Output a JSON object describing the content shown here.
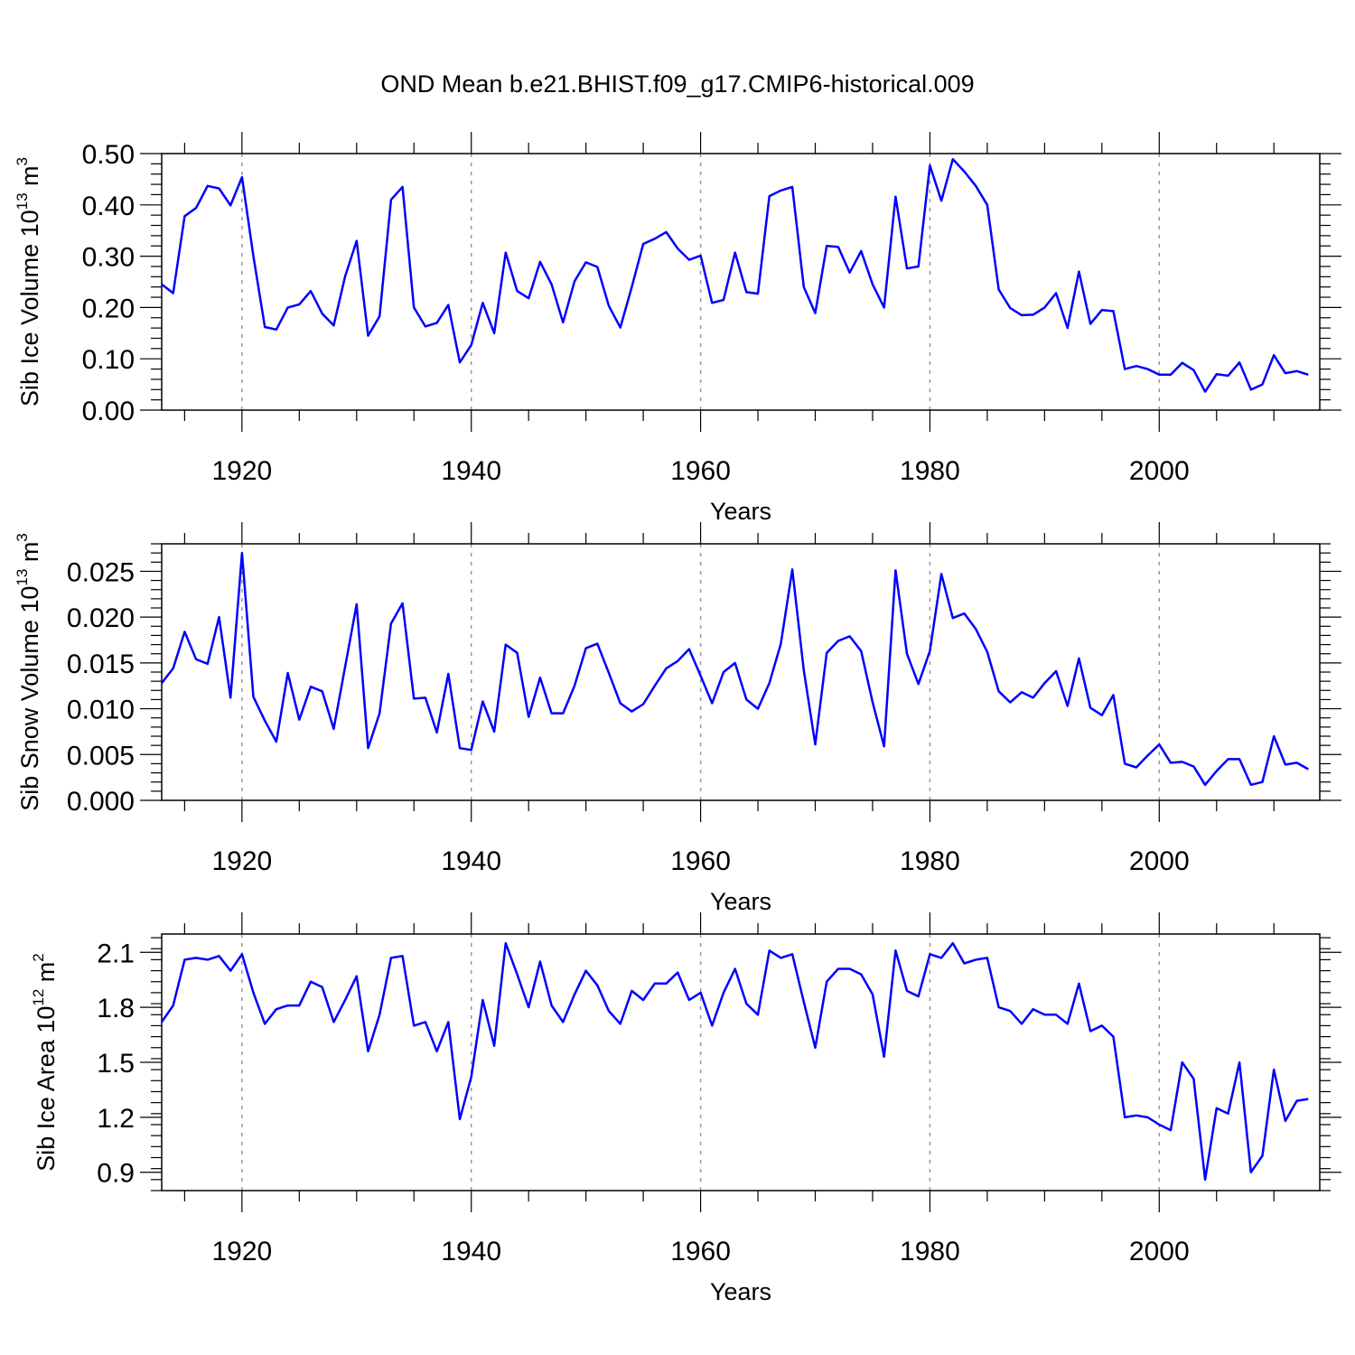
{
  "title": "OND Mean b.e21.BHIST.f09_g17.CMIP6-historical.009",
  "line_color": "#0000ff",
  "chart_data": [
    {
      "type": "line",
      "name": "sib-ice-volume",
      "ylabel": {
        "main": "Sib Ice Volume 10",
        "sup": "13",
        "mid": " m",
        "sup2": "3"
      },
      "xlabel": "Years",
      "xlim": [
        1913,
        2014
      ],
      "ylim": [
        0,
        0.5
      ],
      "yticks": [
        0,
        0.1,
        0.2,
        0.3,
        0.4,
        0.5
      ],
      "ytick_labels": [
        "0.00",
        "0.10",
        "0.20",
        "0.30",
        "0.40",
        "0.50"
      ],
      "xticks": [
        1920,
        1940,
        1960,
        1980,
        2000
      ],
      "xtick_labels": [
        "1920",
        "1940",
        "1960",
        "1980",
        "2000"
      ],
      "x_start": 1913,
      "values": [
        0.245,
        0.228,
        0.378,
        0.394,
        0.437,
        0.432,
        0.399,
        0.454,
        0.3,
        0.162,
        0.157,
        0.2,
        0.206,
        0.232,
        0.188,
        0.165,
        0.261,
        0.33,
        0.145,
        0.183,
        0.41,
        0.435,
        0.2,
        0.163,
        0.17,
        0.205,
        0.093,
        0.127,
        0.209,
        0.15,
        0.307,
        0.232,
        0.218,
        0.289,
        0.245,
        0.171,
        0.251,
        0.288,
        0.279,
        0.203,
        0.161,
        0.24,
        0.324,
        0.334,
        0.347,
        0.315,
        0.293,
        0.301,
        0.209,
        0.215,
        0.307,
        0.23,
        0.227,
        0.417,
        0.428,
        0.435,
        0.24,
        0.189,
        0.32,
        0.318,
        0.268,
        0.31,
        0.245,
        0.2,
        0.416,
        0.276,
        0.28,
        0.477,
        0.408,
        0.489,
        0.465,
        0.437,
        0.4,
        0.235,
        0.199,
        0.185,
        0.186,
        0.2,
        0.228,
        0.16,
        0.27,
        0.168,
        0.195,
        0.193,
        0.08,
        0.086,
        0.08,
        0.069,
        0.069,
        0.092,
        0.078,
        0.036,
        0.07,
        0.067,
        0.093,
        0.04,
        0.05,
        0.107,
        0.072,
        0.076,
        0.069
      ]
    },
    {
      "type": "line",
      "name": "sib-snow-volume",
      "ylabel": {
        "main": "Sib Snow Volume 10",
        "sup": "13",
        "mid": " m",
        "sup2": "3"
      },
      "xlabel": "Years",
      "xlim": [
        1913,
        2014
      ],
      "ylim": [
        0,
        0.028
      ],
      "yticks": [
        0,
        0.005,
        0.01,
        0.015,
        0.02,
        0.025
      ],
      "ytick_labels": [
        "0.000",
        "0.005",
        "0.010",
        "0.015",
        "0.020",
        "0.025"
      ],
      "xticks": [
        1920,
        1940,
        1960,
        1980,
        2000
      ],
      "xtick_labels": [
        "1920",
        "1940",
        "1960",
        "1980",
        "2000"
      ],
      "x_start": 1913,
      "values": [
        0.0128,
        0.0144,
        0.0184,
        0.0154,
        0.0149,
        0.02,
        0.0112,
        0.027,
        0.0113,
        0.0087,
        0.0064,
        0.0139,
        0.0088,
        0.0124,
        0.0119,
        0.0078,
        0.0146,
        0.0214,
        0.0057,
        0.0095,
        0.0193,
        0.0215,
        0.0111,
        0.0112,
        0.0074,
        0.0138,
        0.0057,
        0.0055,
        0.0108,
        0.0075,
        0.017,
        0.0161,
        0.0091,
        0.0134,
        0.0095,
        0.0095,
        0.0125,
        0.0166,
        0.0171,
        0.0139,
        0.0106,
        0.0097,
        0.0105,
        0.0125,
        0.0144,
        0.0152,
        0.0165,
        0.0136,
        0.0106,
        0.014,
        0.015,
        0.011,
        0.01,
        0.0128,
        0.0171,
        0.0252,
        0.0142,
        0.0061,
        0.0161,
        0.0174,
        0.0179,
        0.0163,
        0.0107,
        0.0059,
        0.0251,
        0.016,
        0.0127,
        0.0163,
        0.0247,
        0.0199,
        0.0204,
        0.0187,
        0.0162,
        0.0119,
        0.0107,
        0.0118,
        0.0112,
        0.0128,
        0.0141,
        0.0103,
        0.0155,
        0.0101,
        0.0093,
        0.0115,
        0.004,
        0.0036,
        0.0049,
        0.0061,
        0.0041,
        0.0042,
        0.0037,
        0.0017,
        0.0032,
        0.0045,
        0.0045,
        0.0017,
        0.002,
        0.007,
        0.0039,
        0.0041,
        0.0034
      ]
    },
    {
      "type": "line",
      "name": "sib-ice-area",
      "ylabel": {
        "main": "Sib Ice Area 10",
        "sup": "12",
        "mid": " m",
        "sup2": "2"
      },
      "xlabel": "Years",
      "xlim": [
        1913,
        2014
      ],
      "ylim": [
        0.8,
        2.2
      ],
      "yticks": [
        0.9,
        1.2,
        1.5,
        1.8,
        2.1
      ],
      "ytick_labels": [
        "0.9",
        "1.2",
        "1.5",
        "1.8",
        "2.1"
      ],
      "xticks": [
        1920,
        1940,
        1960,
        1980,
        2000
      ],
      "xtick_labels": [
        "1920",
        "1940",
        "1960",
        "1980",
        "2000"
      ],
      "x_start": 1913,
      "values": [
        1.72,
        1.81,
        2.06,
        2.07,
        2.06,
        2.08,
        2.0,
        2.09,
        1.88,
        1.71,
        1.79,
        1.81,
        1.81,
        1.94,
        1.91,
        1.72,
        1.84,
        1.97,
        1.56,
        1.76,
        2.07,
        2.08,
        1.7,
        1.72,
        1.56,
        1.72,
        1.19,
        1.42,
        1.84,
        1.59,
        2.15,
        1.98,
        1.8,
        2.05,
        1.81,
        1.72,
        1.87,
        2.0,
        1.92,
        1.78,
        1.71,
        1.89,
        1.84,
        1.93,
        1.93,
        1.99,
        1.84,
        1.88,
        1.7,
        1.88,
        2.01,
        1.82,
        1.76,
        2.11,
        2.07,
        2.09,
        1.83,
        1.58,
        1.94,
        2.01,
        2.01,
        1.98,
        1.87,
        1.53,
        2.11,
        1.89,
        1.86,
        2.09,
        2.07,
        2.15,
        2.04,
        2.06,
        2.07,
        1.8,
        1.78,
        1.71,
        1.79,
        1.76,
        1.76,
        1.71,
        1.93,
        1.67,
        1.7,
        1.64,
        1.2,
        1.21,
        1.2,
        1.16,
        1.13,
        1.5,
        1.41,
        0.86,
        1.25,
        1.22,
        1.5,
        0.9,
        0.99,
        1.46,
        1.18,
        1.29,
        1.3
      ]
    }
  ]
}
